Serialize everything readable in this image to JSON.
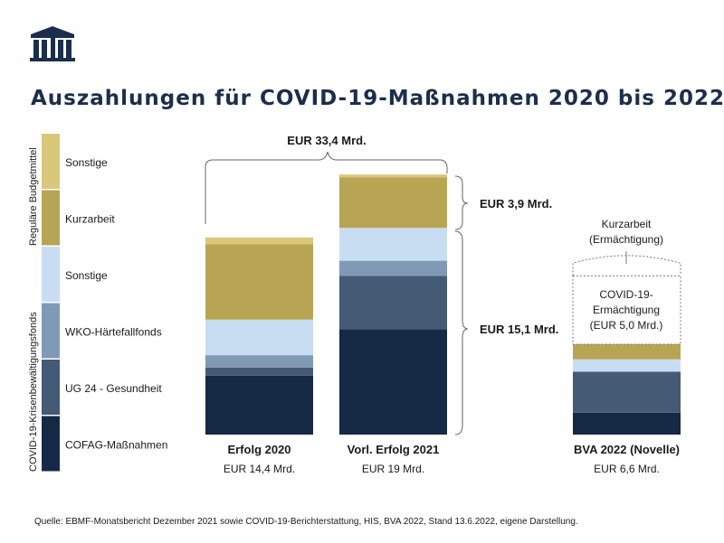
{
  "header": {
    "title": "Auszahlungen für COVID-19-Maßnahmen 2020 bis 2022",
    "logo": "parliament-building-logo"
  },
  "chart_data": {
    "type": "bar",
    "stacked": true,
    "title": "Auszahlungen für COVID-19-Maßnahmen 2020 bis 2022",
    "unit": "EUR Mrd.",
    "categories": [
      "Erfolg 2020",
      "Vorl. Erfolg 2021",
      "BVA 2022 (Novelle)"
    ],
    "category_totals": [
      "EUR 14,4 Mrd.",
      "EUR 19 Mrd.",
      "EUR 6,6 Mrd."
    ],
    "groups": [
      {
        "name": "Reguläre Budgetmittel",
        "series_indices": [
          4,
          5
        ]
      },
      {
        "name": "COVID-19-Krisenbewältigungsfonds",
        "series_indices": [
          0,
          1,
          2,
          3
        ]
      }
    ],
    "series": [
      {
        "name": "COFAG-Maßnahmen",
        "color": "#152945",
        "values": [
          4.3,
          7.7,
          1.6
        ]
      },
      {
        "name": "UG 24 - Gesundheit",
        "color": "#445a75",
        "values": [
          0.6,
          3.9,
          3.0
        ]
      },
      {
        "name": "WKO-Härtefallfonds",
        "color": "#8099b5",
        "values": [
          0.9,
          1.1,
          0.0
        ]
      },
      {
        "name": "Sonstige",
        "color": "#c9ddf2",
        "values": [
          2.6,
          2.4,
          0.9
        ]
      },
      {
        "name": "Kurzarbeit",
        "color": "#b8a553",
        "values": [
          5.5,
          3.7,
          1.1
        ]
      },
      {
        "name": "Sonstige",
        "color": "#d9c77a",
        "values": [
          0.5,
          0.2,
          0.0
        ]
      }
    ],
    "dashed_extensions": [
      {
        "category": "BVA 2022 (Novelle)",
        "lines": [
          "COVID-19-",
          "Ermächtigung",
          "(EUR 5,0 Mrd.)"
        ],
        "value": 5.0
      },
      {
        "category": "BVA 2022 (Novelle)",
        "lines": [
          "Kurzarbeit",
          "(Ermächtigung)"
        ],
        "value": 1.5
      }
    ],
    "annotations": {
      "total_brace": "EUR 33,4 Mrd.",
      "regular_brace": "EUR 3,9 Mrd.",
      "fund_brace": "EUR 15,1 Mrd."
    },
    "ylim": [
      0,
      20
    ],
    "grid": false,
    "legend": "left"
  },
  "footer": {
    "source": "Quelle: EBMF-Monatsbericht Dezember 2021 sowie COVID-19-Berichterstattung, HIS, BVA 2022, Stand 13.6.2022, eigene Darstellung."
  }
}
